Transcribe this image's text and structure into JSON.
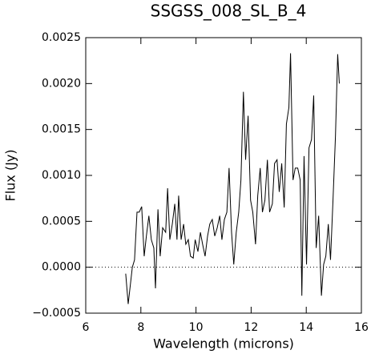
{
  "chart_data": {
    "type": "line",
    "title": "SSGSS_008_SL_B_4",
    "x_label": "Wavelength (microns)",
    "y_label": "Flux (Jy)",
    "color": "#000000",
    "zero_line": true,
    "xlim": [
      6,
      16
    ],
    "xticks": [
      6,
      8,
      10,
      12,
      14,
      16
    ],
    "ylim": [
      -0.0005,
      0.0025
    ],
    "yticks": [
      {
        "value": -0.0005,
        "label": "−0.0005"
      },
      {
        "value": 0,
        "label": "0.0000"
      },
      0.0005,
      {
        "value": 0.001,
        "label": "0.0010"
      },
      {
        "value": 0.0015,
        "label": "0.0015"
      },
      {
        "value": 0.002,
        "label": "0.0020"
      },
      0.0025
    ],
    "x": [
      7.45,
      7.54,
      7.69,
      7.77,
      7.86,
      7.94,
      8.03,
      8.12,
      8.2,
      8.29,
      8.38,
      8.47,
      8.53,
      8.62,
      8.7,
      8.79,
      8.9,
      8.97,
      9.05,
      9.14,
      9.23,
      9.31,
      9.37,
      9.46,
      9.55,
      9.63,
      9.72,
      9.8,
      9.9,
      9.97,
      10.07,
      10.16,
      10.24,
      10.33,
      10.42,
      10.5,
      10.59,
      10.68,
      10.77,
      10.86,
      10.94,
      11.03,
      11.12,
      11.2,
      11.29,
      11.37,
      11.46,
      11.55,
      11.63,
      11.72,
      11.8,
      11.89,
      11.98,
      12.06,
      12.16,
      12.24,
      12.33,
      12.41,
      12.5,
      12.59,
      12.67,
      12.77,
      12.85,
      12.94,
      13.02,
      13.11,
      13.2,
      13.28,
      13.37,
      13.43,
      13.52,
      13.6,
      13.69,
      13.78,
      13.84,
      13.92,
      14.01,
      14.1,
      14.19,
      14.27,
      14.36,
      14.45,
      14.55,
      14.63,
      14.71,
      14.8,
      14.88,
      14.97,
      15.06,
      15.14,
      15.2
    ],
    "values": [
      -7e-05,
      -0.0004,
      0,
      8e-05,
      0.0006,
      0.0006,
      0.00066,
      0.00012,
      0.00034,
      0.00056,
      0.0003,
      0.00021,
      -0.00023,
      0.00063,
      0.00012,
      0.00043,
      0.00038,
      0.00086,
      0.0003,
      0.00047,
      0.00069,
      0.0003,
      0.00078,
      0.0003,
      0.00047,
      0.00025,
      0.0003,
      0.00012,
      0.0001,
      0.0003,
      0.00017,
      0.00038,
      0.00025,
      0.00012,
      0.00034,
      0.00047,
      0.00052,
      0.00034,
      0.00043,
      0.00056,
      0.0003,
      0.00052,
      0.0006,
      0.00108,
      0.00038,
      3e-05,
      0.00038,
      0.0006,
      0.00095,
      0.00191,
      0.00117,
      0.00165,
      0.00073,
      0.0006,
      0.00025,
      0.00078,
      0.00108,
      0.0006,
      0.00073,
      0.00117,
      0.0006,
      0.00069,
      0.00113,
      0.00117,
      0.00082,
      0.00113,
      0.00065,
      0.00156,
      0.00174,
      0.00233,
      0.00095,
      0.00108,
      0.00108,
      0.00095,
      -0.00031,
      0.00121,
      3e-05,
      0.0013,
      0.00139,
      0.00187,
      0.00021,
      0.00056,
      -0.00031,
      3e-05,
      0.00012,
      0.00047,
      8e-05,
      0.00073,
      0.00143,
      0.00232,
      0.002
    ]
  }
}
